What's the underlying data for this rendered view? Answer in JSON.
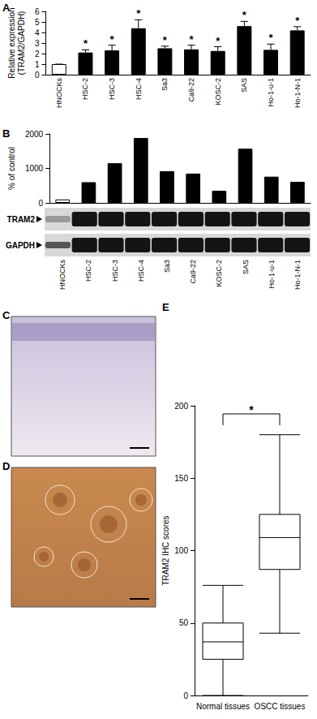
{
  "chart_data": [
    {
      "type": "bar",
      "panel": "A",
      "ylabel": "Relative expression\n(TRAM2/GAPDH)",
      "categories": [
        "HNOCKs",
        "HSC-2",
        "HSC-3",
        "HSC-4",
        "Sa3",
        "Ca9-22",
        "KOSC-2",
        "SAS",
        "Ho-1-u-1",
        "Ho-1-N-1"
      ],
      "values": [
        1,
        2.1,
        2.3,
        4.4,
        2.5,
        2.4,
        2.25,
        4.6,
        2.35,
        4.2
      ],
      "errors": [
        0,
        0.25,
        0.5,
        0.8,
        0.2,
        0.4,
        0.4,
        0.45,
        0.55,
        0.35
      ],
      "colors": [
        "#ffffff",
        "#000000",
        "#000000",
        "#000000",
        "#000000",
        "#000000",
        "#000000",
        "#000000",
        "#000000",
        "#000000"
      ],
      "annotations": [
        null,
        "*",
        "*",
        "*",
        "*",
        "*",
        "*",
        "*",
        "*",
        "*"
      ],
      "ylim": [
        0,
        6
      ],
      "yticks": [
        0,
        1,
        2,
        3,
        4,
        5,
        6
      ]
    },
    {
      "type": "bar",
      "panel": "B",
      "ylabel": "% of control",
      "categories": [
        "HNOCKs",
        "HSC-2",
        "HSC-3",
        "HSC-4",
        "Sa3",
        "Ca9-22",
        "KOSC-2",
        "SAS",
        "Ho-1-u-1",
        "Ho-1-N-1"
      ],
      "values": [
        100,
        600,
        1150,
        1880,
        920,
        850,
        350,
        1570,
        760,
        610
      ],
      "colors": [
        "#ffffff",
        "#000000",
        "#000000",
        "#000000",
        "#000000",
        "#000000",
        "#000000",
        "#000000",
        "#000000",
        "#000000"
      ],
      "ylim": [
        0,
        2000
      ],
      "yticks": [
        0,
        1000,
        2000
      ],
      "blot_labels": [
        "TRAM2",
        "GAPDH"
      ]
    },
    {
      "type": "box",
      "panel": "E",
      "ylabel": "TRAM2 IHC scores",
      "categories": [
        "Normal tissues",
        "OSCC tissues"
      ],
      "boxes": [
        {
          "min": 0,
          "q1": 25,
          "median": 37,
          "q3": 50,
          "max": 76
        },
        {
          "min": 43,
          "q1": 87,
          "median": 109,
          "q3": 125,
          "max": 180
        }
      ],
      "annotation": "*",
      "ylim": [
        0,
        200
      ],
      "yticks": [
        0,
        50,
        100,
        150,
        200
      ]
    }
  ],
  "images": [
    {
      "panel": "C"
    },
    {
      "panel": "D"
    }
  ]
}
